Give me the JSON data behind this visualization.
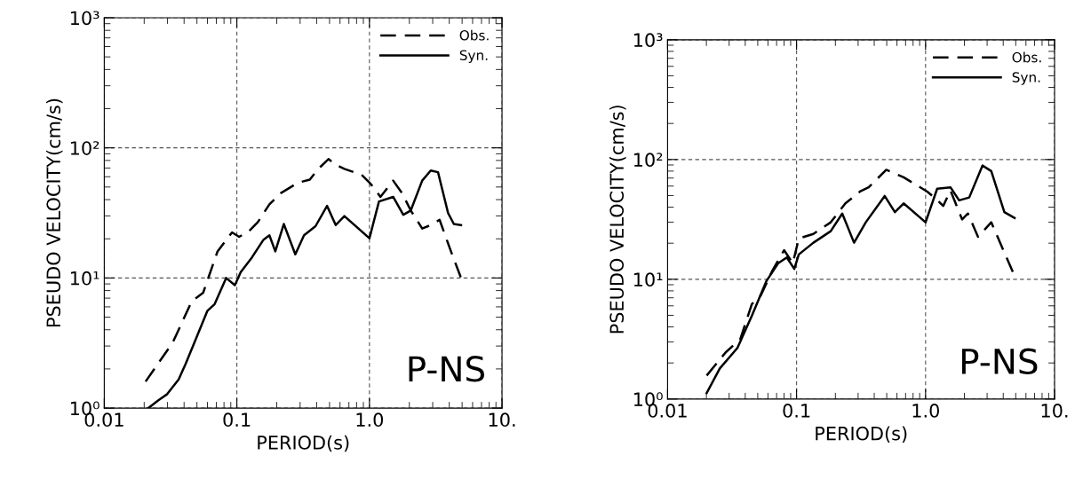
{
  "chart_data": [
    {
      "type": "line",
      "xlabel": "PERIOD(s)",
      "ylabel": "PSEUDO VELOCITY(cm/s)",
      "log": "xy",
      "xlim": [
        0.01,
        10
      ],
      "ylim": [
        1,
        1000
      ],
      "xticks": [
        {
          "value": 0.01,
          "label": "0.01"
        },
        {
          "value": 0.1,
          "label": "0.1"
        },
        {
          "value": 1,
          "label": "1.0"
        },
        {
          "value": 10,
          "label": "10."
        }
      ],
      "yticks": [
        {
          "value": 1,
          "label": "10⁰"
        },
        {
          "value": 10,
          "label": "10¹"
        },
        {
          "value": 100,
          "label": "10²"
        },
        {
          "value": 1000,
          "label": "10³"
        }
      ],
      "grid": true,
      "legend": "top right",
      "annotations": [
        "P-NS"
      ],
      "series": [
        {
          "name": "Obs.",
          "color": "#000000",
          "line_style": "dashed",
          "x": [
            0.0205,
            0.0329,
            0.0456,
            0.0557,
            0.0715,
            0.092,
            0.104,
            0.124,
            0.144,
            0.176,
            0.215,
            0.29,
            0.355,
            0.412,
            0.491,
            0.557,
            0.647,
            0.873,
            1.02,
            1.21,
            1.51,
            1.76,
            2.05,
            2.5,
            2.9,
            3.38,
            4.12,
            4.91
          ],
          "values": [
            1.6,
            3.2,
            6.6,
            7.7,
            16,
            22.4,
            20.7,
            23,
            26.9,
            36.8,
            45,
            54,
            57,
            69,
            82,
            74,
            69,
            62,
            53,
            42,
            56,
            45,
            33,
            24,
            25.5,
            28,
            16,
            10
          ]
        },
        {
          "name": "Syn.",
          "color": "#000000",
          "line_style": "solid",
          "x": [
            0.0215,
            0.0256,
            0.0298,
            0.0364,
            0.0412,
            0.0479,
            0.06,
            0.068,
            0.083,
            0.0966,
            0.107,
            0.13,
            0.159,
            0.176,
            0.195,
            0.226,
            0.276,
            0.321,
            0.392,
            0.479,
            0.557,
            0.647,
            1.0,
            1.18,
            1.51,
            1.8,
            2.05,
            2.5,
            2.9,
            3.29,
            3.92,
            4.33,
            4.91
          ],
          "values": [
            1.0,
            1.15,
            1.28,
            1.66,
            2.2,
            3.2,
            5.6,
            6.3,
            10,
            8.8,
            11.1,
            14.4,
            19.7,
            21.3,
            16,
            26,
            15.2,
            21.3,
            25,
            35.8,
            25.5,
            29.9,
            20.2,
            38.7,
            42,
            30.6,
            33,
            56,
            67,
            65,
            31.5,
            26,
            25.5
          ]
        }
      ]
    },
    {
      "type": "line",
      "xlabel": "PERIOD(s)",
      "ylabel": "PSEUDO VELOCITY(cm/s)",
      "log": "xy",
      "xlim": [
        0.01,
        10
      ],
      "ylim": [
        1,
        1000
      ],
      "xticks": [
        {
          "value": 0.01,
          "label": "0.01"
        },
        {
          "value": 0.1,
          "label": "0.1"
        },
        {
          "value": 1,
          "label": "1.0"
        },
        {
          "value": 10,
          "label": "10."
        }
      ],
      "yticks": [
        {
          "value": 1,
          "label": "10⁰"
        },
        {
          "value": 10,
          "label": "10¹"
        },
        {
          "value": 100,
          "label": "10²"
        },
        {
          "value": 1000,
          "label": "10³"
        }
      ],
      "grid": true,
      "legend": "top right",
      "annotations": [
        "P-NS"
      ],
      "series": [
        {
          "name": "Obs.",
          "color": "#000000",
          "line_style": "dashed",
          "x": [
            0.0201,
            0.0282,
            0.0366,
            0.045,
            0.0527,
            0.0649,
            0.08,
            0.0935,
            0.104,
            0.135,
            0.184,
            0.239,
            0.31,
            0.362,
            0.496,
            0.676,
            0.877,
            1.03,
            1.2,
            1.37,
            1.56,
            1.92,
            2.13,
            2.55,
            3.23,
            5.02
          ],
          "values": [
            1.57,
            2.45,
            3.16,
            6.2,
            7.3,
            11.8,
            17.5,
            13.6,
            21.9,
            23.9,
            29.9,
            43,
            54,
            58.6,
            82,
            71,
            60,
            54,
            47,
            41,
            55,
            31.6,
            35.4,
            22.6,
            29.9,
            10
          ]
        },
        {
          "name": "Syn.",
          "color": "#000000",
          "line_style": "solid",
          "x": [
            0.0201,
            0.0254,
            0.0348,
            0.045,
            0.0585,
            0.072,
            0.084,
            0.096,
            0.104,
            0.135,
            0.184,
            0.226,
            0.279,
            0.344,
            0.482,
            0.578,
            0.676,
            1.0,
            1.23,
            1.56,
            1.82,
            2.18,
            2.76,
            3.23,
            4.08,
            4.9
          ],
          "values": [
            1.12,
            1.8,
            2.67,
            4.95,
            9.7,
            13.6,
            15.2,
            12.2,
            16.1,
            20.2,
            25.2,
            35.4,
            20.2,
            29.9,
            49.6,
            36.4,
            43,
            29.9,
            57,
            58.6,
            45.6,
            48.2,
            89,
            80,
            36.4,
            32.5
          ]
        }
      ]
    }
  ]
}
